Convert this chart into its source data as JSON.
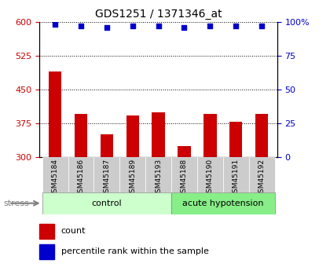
{
  "title": "GDS1251 / 1371346_at",
  "categories": [
    "GSM45184",
    "GSM45186",
    "GSM45187",
    "GSM45189",
    "GSM45193",
    "GSM45188",
    "GSM45190",
    "GSM45191",
    "GSM45192"
  ],
  "bar_values": [
    490,
    395,
    350,
    392,
    400,
    325,
    395,
    378,
    395
  ],
  "percentile_values": [
    98,
    97,
    96,
    97,
    97,
    96,
    97,
    97,
    97
  ],
  "group_labels": [
    "control",
    "acute hypotension"
  ],
  "control_count": 5,
  "acute_count": 4,
  "stress_label": "stress",
  "bar_color": "#cc0000",
  "percentile_color": "#0000cc",
  "control_fill": "#ccffcc",
  "acute_fill": "#88ee88",
  "tick_bg_color": "#cccccc",
  "ylim_left": [
    300,
    600
  ],
  "ylim_right": [
    0,
    100
  ],
  "yticks_left": [
    300,
    375,
    450,
    525,
    600
  ],
  "yticks_right": [
    0,
    25,
    50,
    75,
    100
  ],
  "legend_count_label": "count",
  "legend_pct_label": "percentile rank within the sample"
}
